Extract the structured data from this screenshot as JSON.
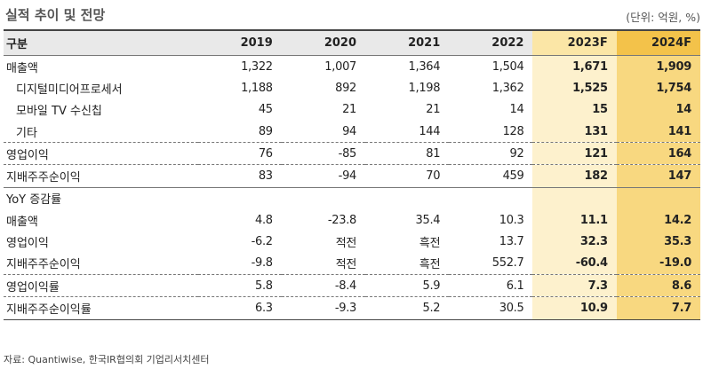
{
  "title": "실적 추이 및 전망",
  "unit": "(단위: 억원, %)",
  "columns": [
    "구분",
    "2019",
    "2020",
    "2021",
    "2022",
    "2023F",
    "2024F"
  ],
  "rows": [
    {
      "label": "매출액",
      "values": [
        "1,322",
        "1,007",
        "1,364",
        "1,504",
        "1,671",
        "1,909"
      ]
    },
    {
      "label": "디지털미디어프로세서",
      "values": [
        "1,188",
        "892",
        "1,198",
        "1,362",
        "1,525",
        "1,754"
      ]
    },
    {
      "label": "모바일 TV 수신칩",
      "values": [
        "45",
        "21",
        "21",
        "14",
        "15",
        "14"
      ]
    },
    {
      "label": "기타",
      "values": [
        "89",
        "94",
        "144",
        "128",
        "131",
        "141"
      ]
    },
    {
      "label": "영업이익",
      "values": [
        "76",
        "-85",
        "81",
        "92",
        "121",
        "164"
      ]
    },
    {
      "label": "지배주주순이익",
      "values": [
        "83",
        "-94",
        "70",
        "459",
        "182",
        "147"
      ]
    },
    {
      "label": "YoY 증감률",
      "values": []
    },
    {
      "label": "매출액",
      "values": [
        "4.8",
        "-23.8",
        "35.4",
        "10.3",
        "11.1",
        "14.2"
      ]
    },
    {
      "label": "영업이익",
      "values": [
        "-6.2",
        "적전",
        "흑전",
        "13.7",
        "32.3",
        "35.3"
      ]
    },
    {
      "label": "지배주주순이익",
      "values": [
        "-9.8",
        "적전",
        "흑전",
        "552.7",
        "-60.4",
        "-19.0"
      ]
    },
    {
      "label": "영업이익률",
      "values": [
        "5.8",
        "-8.4",
        "5.9",
        "6.1",
        "7.3",
        "8.6"
      ]
    },
    {
      "label": "지배주주순이익률",
      "values": [
        "6.3",
        "-9.3",
        "5.2",
        "30.5",
        "10.9",
        "7.7"
      ]
    }
  ],
  "source": "자료: Quantiwise, 한국IR협의회 기업리서치센터",
  "colors": {
    "forecast_2023": "#fdf1cd",
    "forecast_2024": "#f8d880",
    "header_bg": "#e9e9e9"
  }
}
